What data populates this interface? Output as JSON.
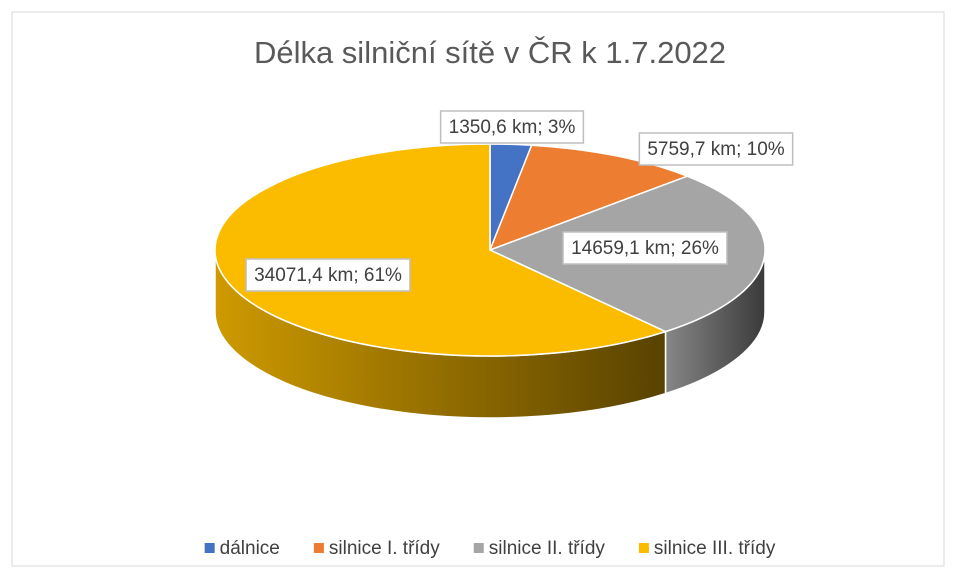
{
  "chart_data": {
    "type": "pie",
    "three_d": true,
    "title": "Délka silniční sítě v ČR k 1.7.2022",
    "categories": [
      "dálnice",
      "silnice I. třídy",
      "silnice II. třídy",
      "silnice III. třídy"
    ],
    "values": [
      1350.6,
      5759.7,
      14659.1,
      34071.4
    ],
    "value_labels": [
      "1350,6 km; 3%",
      "5759,7 km; 10%",
      "14659,1 km; 26%",
      "34071,4 km; 61%"
    ],
    "colors": [
      "#4472c4",
      "#ed7d31",
      "#a5a5a5",
      "#fbbc00"
    ],
    "legend": "bottom"
  }
}
